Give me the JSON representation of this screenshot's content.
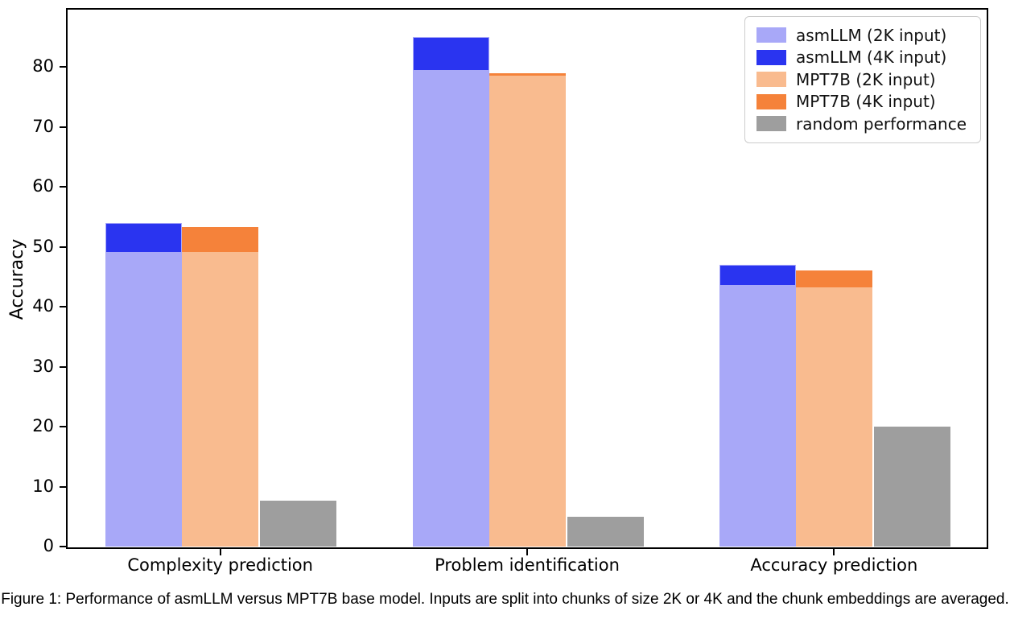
{
  "chart_data": {
    "type": "bar",
    "title": "",
    "xlabel": "",
    "ylabel": "Accuracy",
    "ylim": [
      0,
      89.7
    ],
    "yticks": [
      0,
      10,
      20,
      30,
      40,
      50,
      60,
      70,
      80
    ],
    "grid": false,
    "legend_position": "upper right",
    "bar_style": "2K and 4K bars of the same model overlap at the same x; the taller 4K bar shows above the 2K bar",
    "categories": [
      "Complexity prediction",
      "Problem identification",
      "Accuracy prediction"
    ],
    "series": [
      {
        "name": "asmLLM (2K input)",
        "color": "#a8a8f8",
        "values": [
          49.2,
          79.5,
          43.7
        ],
        "slot": 0,
        "zorder": 2
      },
      {
        "name": "asmLLM (4K input)",
        "color": "#2a34f0",
        "edge": "#a8a8f8",
        "values": [
          54.0,
          85.0,
          47.0
        ],
        "slot": 0,
        "zorder": 1
      },
      {
        "name": "MPT7B (2K input)",
        "color": "#f9bb8f",
        "values": [
          49.2,
          78.5,
          43.2
        ],
        "slot": 1,
        "zorder": 2
      },
      {
        "name": "MPT7B (4K input)",
        "color": "#f5823a",
        "values": [
          53.3,
          78.9,
          46.0
        ],
        "slot": 1,
        "zorder": 1
      },
      {
        "name": "random performance",
        "color": "#9e9e9e",
        "values": [
          7.7,
          5.0,
          20.0
        ],
        "slot": 2,
        "zorder": 1
      }
    ]
  },
  "caption": "Figure 1: Performance of asmLLM versus MPT7B base model. Inputs are split into chunks of size 2K or 4K and the chunk embeddings are averaged."
}
